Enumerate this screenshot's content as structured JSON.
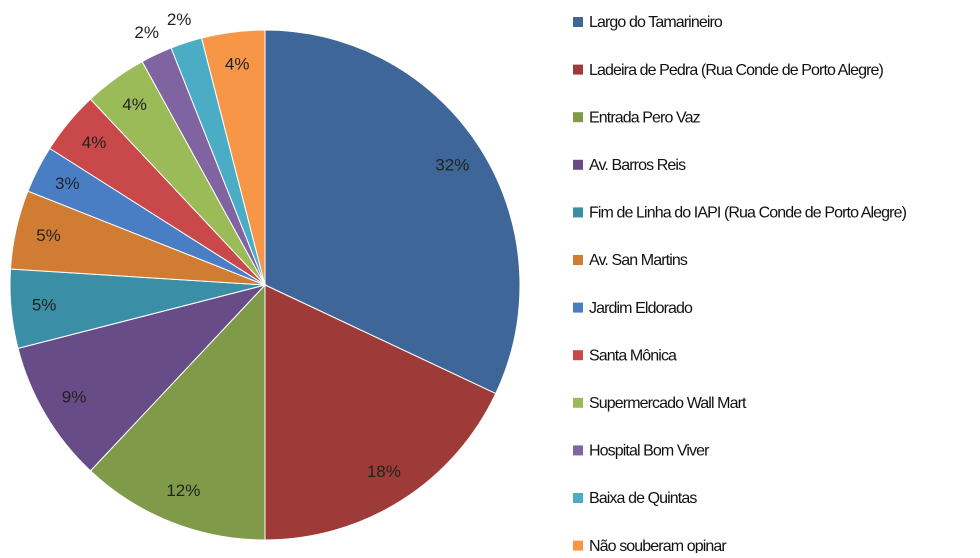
{
  "chart_data": {
    "type": "pie",
    "categories": [
      "Largo do Tamarineiro",
      "Ladeira de Pedra (Rua Conde de Porto Alegre)",
      "Entrada Pero Vaz",
      "Av. Barros Reis",
      "Fim de Linha do IAPI (Rua Conde de Porto Alegre)",
      "Av. San Martins",
      "Jardim Eldorado",
      "Santa Mônica",
      "Supermercado Wall Mart",
      "Hospital Bom Viver",
      "Baixa de Quintas",
      "Não souberam opinar"
    ],
    "values": [
      32,
      18,
      12,
      9,
      5,
      5,
      3,
      4,
      4,
      2,
      2,
      4
    ],
    "value_labels": [
      "32%",
      "18%",
      "12%",
      "9%",
      "5%",
      "5%",
      "3%",
      "4%",
      "4%",
      "2%",
      "2%",
      "4%"
    ],
    "colors": [
      "#3f6699",
      "#9e3b38",
      "#7f9a48",
      "#674c87",
      "#3a8ea6",
      "#d07c32",
      "#4a7ec4",
      "#c9484a",
      "#9bbb59",
      "#8064a2",
      "#4bacc6",
      "#f79646"
    ],
    "legend": "right"
  }
}
